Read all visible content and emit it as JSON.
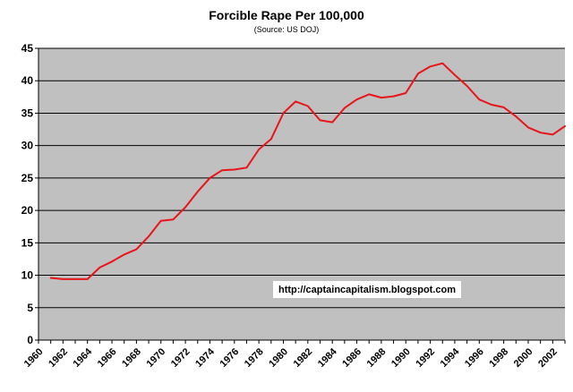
{
  "chart_data": {
    "type": "line",
    "title": "Forcible Rape Per 100,000",
    "subtitle": "(Source: US DOJ)",
    "xlabel": "",
    "ylabel": "",
    "ylim": [
      0,
      45
    ],
    "xlim": [
      1960,
      2003
    ],
    "y_ticks": [
      "0",
      "5",
      "10",
      "15",
      "20",
      "25",
      "30",
      "35",
      "40",
      "45"
    ],
    "x_ticks": [
      "1960",
      "1962",
      "1964",
      "1966",
      "1968",
      "1970",
      "1972",
      "1974",
      "1976",
      "1978",
      "1980",
      "1982",
      "1984",
      "1986",
      "1988",
      "1990",
      "1992",
      "1994",
      "1996",
      "1998",
      "2000",
      "2002"
    ],
    "grid": true,
    "legend": "none",
    "plot_background": "#c0c0c0",
    "series": [
      {
        "color": "#e8141a",
        "x": [
          1961,
          1962,
          1963,
          1964,
          1965,
          1966,
          1967,
          1968,
          1969,
          1970,
          1971,
          1972,
          1973,
          1974,
          1975,
          1976,
          1977,
          1978,
          1979,
          1980,
          1981,
          1982,
          1983,
          1984,
          1985,
          1986,
          1987,
          1988,
          1989,
          1990,
          1991,
          1992,
          1993,
          1994,
          1995,
          1996,
          1997,
          1998,
          1999,
          2000,
          2001,
          2002,
          2003
        ],
        "values": [
          9.6,
          9.4,
          9.4,
          9.4,
          11.2,
          12.1,
          13.2,
          14.0,
          16.0,
          18.4,
          18.6,
          20.5,
          22.9,
          25.0,
          26.2,
          26.3,
          26.6,
          29.4,
          31.0,
          35.0,
          36.8,
          36.1,
          33.9,
          33.6,
          35.8,
          37.1,
          37.9,
          37.4,
          37.6,
          38.1,
          41.1,
          42.2,
          42.7,
          40.9,
          39.2,
          37.1,
          36.3,
          35.9,
          34.5,
          32.8,
          32.0,
          31.7,
          33.0
        ]
      }
    ],
    "annotation": "http://captaincapitalism.blogspot.com"
  }
}
